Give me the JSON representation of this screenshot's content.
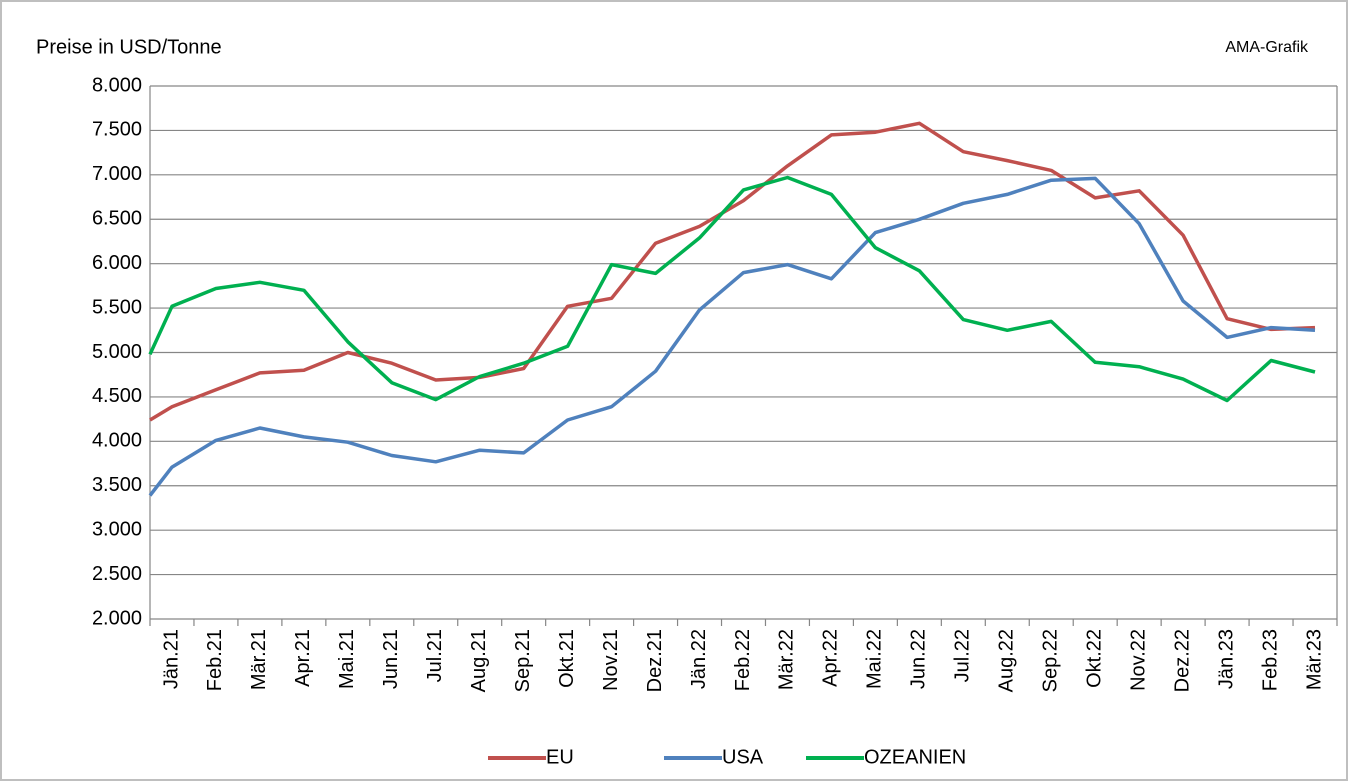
{
  "chart_data": {
    "type": "line",
    "title": "Preise in USD/Tonne",
    "annotation": "AMA-Grafik",
    "categories": [
      null,
      "Jän.21",
      "Feb.21",
      "Mär.21",
      "Apr.21",
      "Mai.21",
      "Jun.21",
      "Jul.21",
      "Aug.21",
      "Sep.21",
      "Okt.21",
      "Nov.21",
      "Dez.21",
      "Jän.22",
      "Feb.22",
      "Mär.22",
      "Apr.22",
      "Mai.22",
      "Jun.22",
      "Jul.22",
      "Aug.22",
      "Sep.22",
      "Okt.22",
      "Nov.22",
      "Dez.22",
      "Jän.23",
      "Feb.23",
      "Mär.23"
    ],
    "series": [
      {
        "name": "EU",
        "color": "#c0504d",
        "values": [
          4240,
          4390,
          4580,
          4770,
          4800,
          5000,
          4880,
          4690,
          4720,
          4820,
          5520,
          5610,
          6230,
          6420,
          6710,
          7100,
          7450,
          7480,
          7580,
          7260,
          7160,
          7050,
          6740,
          6820,
          6320,
          5380,
          5260,
          5280
        ]
      },
      {
        "name": "USA",
        "color": "#4f81bd",
        "values": [
          3390,
          3710,
          4010,
          4150,
          4050,
          3990,
          3840,
          3770,
          3900,
          3870,
          4240,
          4390,
          4790,
          5480,
          5900,
          5990,
          5830,
          6350,
          6500,
          6680,
          6780,
          6940,
          6960,
          6450,
          5580,
          5170,
          5280,
          5250
        ]
      },
      {
        "name": "OZEANIEN",
        "color": "#00b050",
        "values": [
          4980,
          5520,
          5720,
          5790,
          5700,
          5120,
          4660,
          4470,
          4730,
          4880,
          5070,
          5990,
          5890,
          6290,
          6830,
          6970,
          6780,
          6180,
          5920,
          5370,
          5250,
          5350,
          4890,
          4840,
          4700,
          4460,
          4910,
          4780
        ]
      }
    ],
    "ylim": [
      2000,
      8000
    ],
    "yticks": [
      {
        "value": 2000,
        "label": "2.000"
      },
      {
        "value": 2500,
        "label": "2.500"
      },
      {
        "value": 3000,
        "label": "3.000"
      },
      {
        "value": 3500,
        "label": "3.500"
      },
      {
        "value": 4000,
        "label": "4.000"
      },
      {
        "value": 4500,
        "label": "4.500"
      },
      {
        "value": 5000,
        "label": "5.000"
      },
      {
        "value": 5500,
        "label": "5.500"
      },
      {
        "value": 6000,
        "label": "6.000"
      },
      {
        "value": 6500,
        "label": "6.500"
      },
      {
        "value": 7000,
        "label": "7.000"
      },
      {
        "value": 7500,
        "label": "7.500"
      },
      {
        "value": 8000,
        "label": "8.000"
      }
    ],
    "grid": true,
    "legend": "bottom"
  }
}
